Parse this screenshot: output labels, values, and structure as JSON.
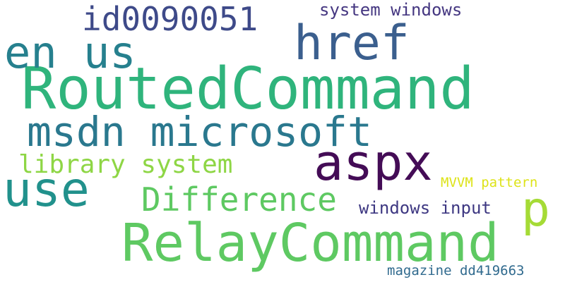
{
  "word_cloud": {
    "words": [
      {
        "text": "RoutedCommand",
        "color": "#2fb47c"
      },
      {
        "text": "RelayCommand",
        "color": "#5ec962"
      },
      {
        "text": "msdn microsoft",
        "color": "#2a788e"
      },
      {
        "text": "href",
        "color": "#3b5f8e"
      },
      {
        "text": "aspx",
        "color": "#440c56"
      },
      {
        "text": "en us",
        "color": "#26808e"
      },
      {
        "text": "use",
        "color": "#21918c"
      },
      {
        "text": "id0090051",
        "color": "#3e4a89"
      },
      {
        "text": "p",
        "color": "#a5db36"
      },
      {
        "text": "Difference",
        "color": "#5ec962"
      },
      {
        "text": "library system",
        "color": "#8ed645"
      },
      {
        "text": "windows input",
        "color": "#3e3882"
      },
      {
        "text": "system windows",
        "color": "#453781"
      },
      {
        "text": "MVVM pattern",
        "color": "#dde318"
      },
      {
        "text": "magazine dd419663",
        "color": "#306a8e"
      }
    ]
  }
}
